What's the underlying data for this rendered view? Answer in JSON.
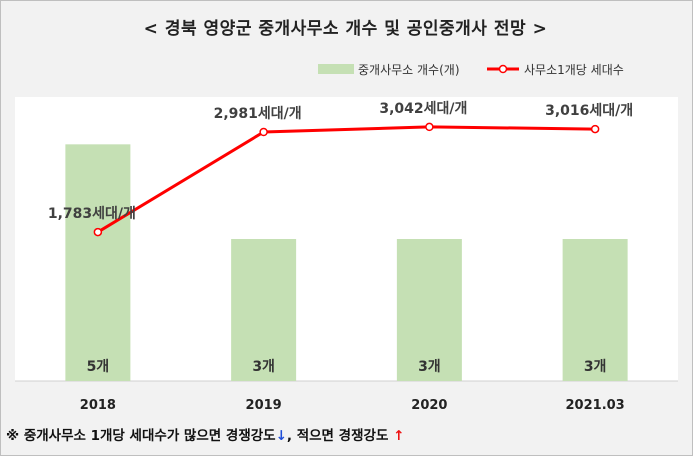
{
  "title": "< 경북 영양군 중개사무소 개수 및 공인중개사 전망 >",
  "footnote": {
    "text1": "※ 중개사무소 1개당 세대수가 많으면 경쟁강도",
    "arrow1": "↓",
    "text2": ", 적으면 경쟁강도",
    "arrow2": "↑"
  },
  "colors": {
    "bar": "#c5e0b4",
    "line": "#ff0000",
    "plot_bg": "#ffffff",
    "frame_bg": "#f2f2f2"
  },
  "chart_data": {
    "type": "bar",
    "categories": [
      "2018",
      "2019",
      "2020",
      "2021.03"
    ],
    "series": [
      {
        "name": "중개사무소 개수(개)",
        "type": "bar",
        "values": [
          5,
          3,
          3,
          3
        ],
        "labels": [
          "5개",
          "3개",
          "3개",
          "3개"
        ]
      },
      {
        "name": "사무소1개당 세대수",
        "type": "line",
        "values": [
          1783,
          2981,
          3042,
          3016
        ],
        "labels": [
          "1,783세대/개",
          "2,981세대/개",
          "3,042세대/개",
          "3,016세대/개"
        ]
      }
    ],
    "legend_position": "top-right",
    "grid": false,
    "y_bar_range": [
      0,
      6
    ],
    "y_line_range": [
      0,
      3400
    ]
  }
}
